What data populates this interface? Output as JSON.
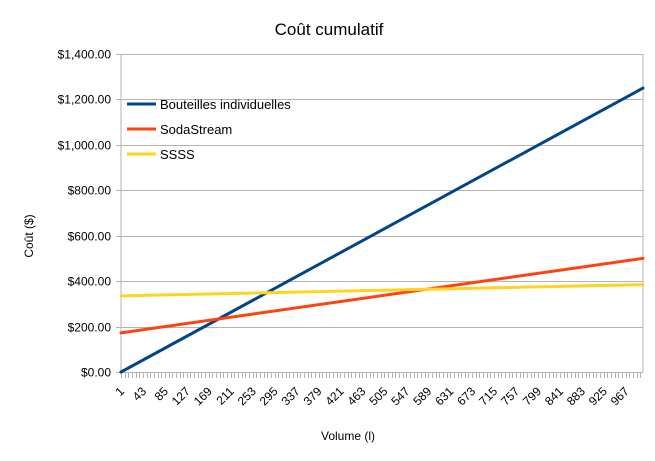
{
  "chart_data": {
    "type": "line",
    "title": "Coût cumulatif",
    "xlabel": "Volume (l)",
    "ylabel": "Coût ($)",
    "ylim": [
      0,
      1400
    ],
    "y_ticks": [
      "$0.00",
      "$200.00",
      "$400.00",
      "$600.00",
      "$800.00",
      "$1,000.00",
      "$1,200.00",
      "$1,400.00"
    ],
    "x_ticks": [
      "1",
      "43",
      "85",
      "127",
      "169",
      "211",
      "253",
      "295",
      "337",
      "379",
      "421",
      "463",
      "505",
      "547",
      "589",
      "631",
      "673",
      "715",
      "757",
      "799",
      "841",
      "883",
      "925",
      "967"
    ],
    "xlim": [
      1,
      1000
    ],
    "grid": "horizontal",
    "legend_position": "top-left",
    "series": [
      {
        "name": "Bouteilles individuelles",
        "color": "#004586",
        "x": [
          1,
          1000
        ],
        "values": [
          0,
          1250
        ]
      },
      {
        "name": "SodaStream",
        "color": "#ff420e",
        "x": [
          1,
          1000
        ],
        "values": [
          172,
          500
        ]
      },
      {
        "name": "SSSS",
        "color": "#ffd320",
        "x": [
          1,
          1000
        ],
        "values": [
          335,
          385
        ]
      }
    ]
  }
}
